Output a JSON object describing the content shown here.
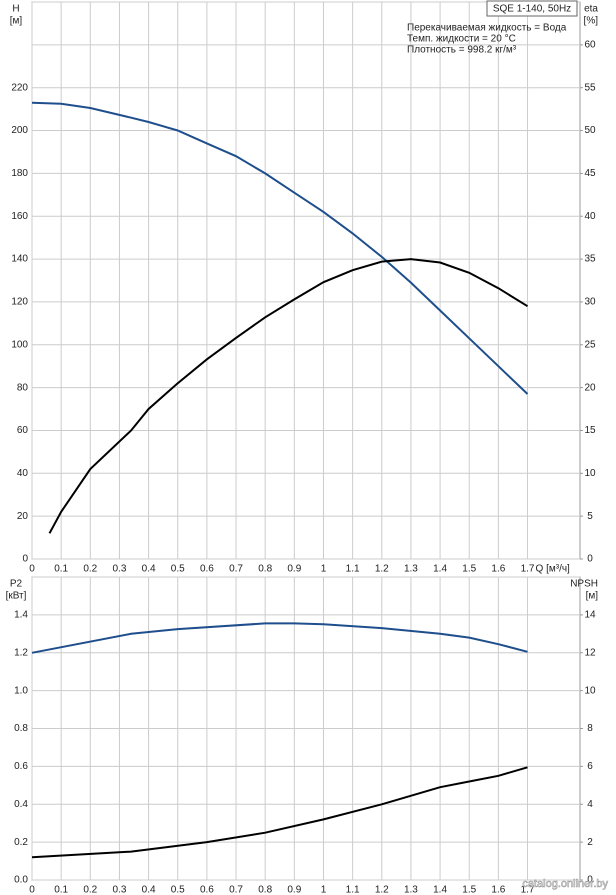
{
  "chart_data": [
    {
      "type": "line",
      "title": "SQE 1-140, 50Hz",
      "annotations": [
        "Перекачиваемая жидкость = Вода",
        "Темп. жидкости = 20 °C",
        "Плотность = 998.2 кг/м³"
      ],
      "ylabel": "H",
      "yunit": "[м]",
      "y2label": "eta",
      "y2unit": "[%]",
      "xlabel": "Q [м³/ч]",
      "xlim": [
        0,
        1.88
      ],
      "xticks": [
        0,
        0.1,
        0.2,
        0.3,
        0.4,
        0.5,
        0.6,
        0.7,
        0.8,
        0.9,
        1.0,
        1.1,
        1.2,
        1.3,
        1.4,
        1.5,
        1.6,
        1.7
      ],
      "ylim": [
        0,
        260
      ],
      "yticks": [
        0,
        20,
        40,
        60,
        80,
        100,
        120,
        140,
        160,
        180,
        200,
        220
      ],
      "y2lim": [
        0,
        65
      ],
      "y2ticks": [
        0,
        5,
        10,
        15,
        20,
        25,
        30,
        35,
        40,
        45,
        50,
        55,
        60
      ],
      "grid": true,
      "series": [
        {
          "name": "H",
          "color": "#1f4e8c",
          "x": [
            0,
            0.1,
            0.2,
            0.34,
            0.4,
            0.5,
            0.6,
            0.7,
            0.8,
            0.9,
            1.0,
            1.1,
            1.2,
            1.3,
            1.4,
            1.5,
            1.6,
            1.7
          ],
          "values": [
            213,
            212.5,
            210.5,
            206,
            204,
            200,
            194,
            188,
            180,
            171,
            162,
            152,
            141,
            129,
            116,
            103,
            90,
            77
          ]
        },
        {
          "name": "eta",
          "axis": "y2",
          "color": "#000000",
          "x": [
            0.06,
            0.1,
            0.2,
            0.34,
            0.4,
            0.5,
            0.6,
            0.7,
            0.8,
            0.9,
            1.0,
            1.1,
            1.2,
            1.3,
            1.4,
            1.5,
            1.6,
            1.7
          ],
          "values": [
            3,
            5.5,
            10.5,
            15,
            17.5,
            20.5,
            23.3,
            25.8,
            28.2,
            30.3,
            32.3,
            33.7,
            34.7,
            35,
            34.6,
            33.4,
            31.6,
            29.5
          ]
        }
      ]
    },
    {
      "type": "line",
      "ylabel": "P2",
      "yunit": "[кВт]",
      "y2label": "NPSH",
      "y2unit": "[м]",
      "xlim": [
        0,
        1.88
      ],
      "xticks": [
        0,
        0.1,
        0.2,
        0.3,
        0.4,
        0.5,
        0.6,
        0.7,
        0.8,
        0.9,
        1.0,
        1.1,
        1.2,
        1.3,
        1.4,
        1.5,
        1.6,
        1.7
      ],
      "ylim": [
        0,
        1.6
      ],
      "yticks": [
        {
          "value": 0,
          "label": "0.0"
        },
        0.2,
        0.4,
        0.6,
        0.8,
        {
          "value": 1,
          "label": "1.0"
        },
        1.2,
        1.4
      ],
      "y2lim": [
        0,
        16
      ],
      "y2ticks": [
        0,
        2,
        4,
        6,
        8,
        10,
        12,
        14
      ],
      "grid": true,
      "series": [
        {
          "name": "P2",
          "color": "#1f4e8c",
          "x": [
            0,
            0.34,
            0.5,
            0.8,
            0.9,
            1.0,
            1.2,
            1.4,
            1.5,
            1.6,
            1.7
          ],
          "values": [
            1.2,
            1.3,
            1.325,
            1.355,
            1.355,
            1.35,
            1.33,
            1.3,
            1.28,
            1.245,
            1.205
          ]
        },
        {
          "name": "NPSH",
          "axis": "y2",
          "color": "#000000",
          "x": [
            0,
            0.34,
            0.6,
            0.8,
            1.0,
            1.2,
            1.4,
            1.5,
            1.6,
            1.7
          ],
          "values": [
            1.2,
            1.5,
            2,
            2.5,
            3.2,
            4.0,
            4.9,
            5.2,
            5.5,
            5.95
          ]
        }
      ]
    }
  ],
  "watermark": "catalog.onliner.by"
}
